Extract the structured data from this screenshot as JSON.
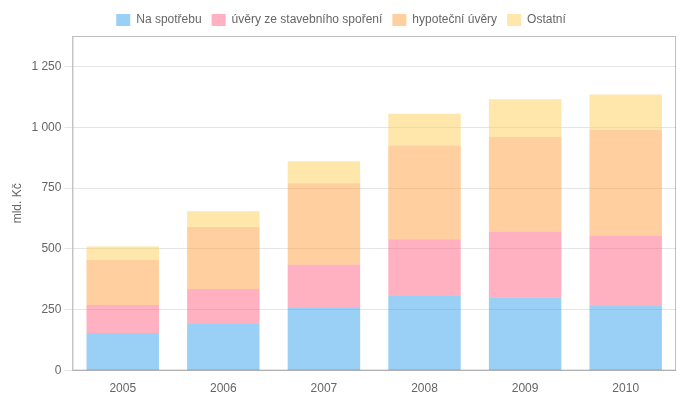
{
  "chart_data": {
    "type": "bar",
    "stacked": true,
    "categories": [
      "2005",
      "2006",
      "2007",
      "2008",
      "2009",
      "2010"
    ],
    "series": [
      {
        "name": "Na spotřebu",
        "values": [
          155,
          195,
          260,
          310,
          300,
          265
        ]
      },
      {
        "name": "úvěry ze stavebního spoření",
        "values": [
          115,
          140,
          175,
          230,
          270,
          290
        ]
      },
      {
        "name": "hypoteční úvěry",
        "values": [
          185,
          255,
          335,
          385,
          390,
          435
        ]
      },
      {
        "name": "Ostatní",
        "values": [
          55,
          65,
          90,
          130,
          155,
          145
        ]
      }
    ],
    "ylabel": "mld. Kč",
    "ylim": [
      0,
      1375
    ],
    "yticks": [
      0,
      250,
      500,
      750,
      {
        "value": 1000,
        "label": "1 000"
      },
      {
        "value": 1250,
        "label": "1 250"
      }
    ],
    "grid": true,
    "legend": "top"
  }
}
